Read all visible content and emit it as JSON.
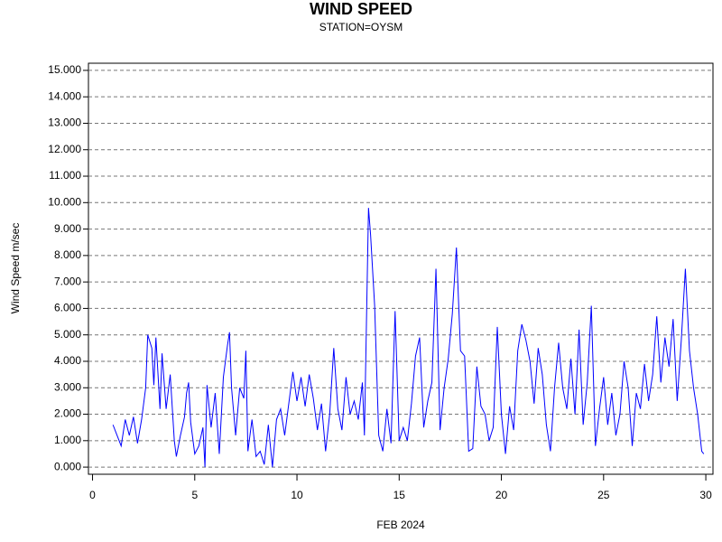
{
  "chart_data": {
    "type": "line",
    "title": "WIND SPEED",
    "subtitle": "STATION=OYSM",
    "x_label": "FEB 2024",
    "y_label": "Wind Speed m/sec",
    "color": "#0000ff",
    "grid": true,
    "xlim": [
      -0.2,
      30.35
    ],
    "ylim": [
      -0.27,
      15.27
    ],
    "xticks": [
      0,
      5,
      10,
      15,
      20,
      25,
      30
    ],
    "yticks": [
      {
        "value": 0,
        "label": "0.000"
      },
      {
        "value": 1,
        "label": "1.000"
      },
      {
        "value": 2,
        "label": "2.000"
      },
      {
        "value": 3,
        "label": "3.000"
      },
      {
        "value": 4,
        "label": "4.000"
      },
      {
        "value": 5,
        "label": "5.000"
      },
      {
        "value": 6,
        "label": "6.000"
      },
      {
        "value": 7,
        "label": "7.000"
      },
      {
        "value": 8,
        "label": "8.000"
      },
      {
        "value": 9,
        "label": "9.000"
      },
      {
        "value": 10,
        "label": "10.000"
      },
      {
        "value": 11,
        "label": "11.000"
      },
      {
        "value": 12,
        "label": "12.000"
      },
      {
        "value": 13,
        "label": "13.000"
      },
      {
        "value": 14,
        "label": "14.000"
      },
      {
        "value": 15,
        "label": "15.000"
      }
    ],
    "x": [
      1.0,
      1.2,
      1.4,
      1.6,
      1.8,
      2.0,
      2.2,
      2.4,
      2.6,
      2.7,
      2.9,
      3.0,
      3.1,
      3.3,
      3.4,
      3.6,
      3.8,
      4.0,
      4.1,
      4.3,
      4.5,
      4.6,
      4.7,
      4.8,
      5.0,
      5.2,
      5.4,
      5.5,
      5.6,
      5.8,
      6.0,
      6.2,
      6.4,
      6.6,
      6.7,
      6.8,
      7.0,
      7.2,
      7.4,
      7.5,
      7.6,
      7.8,
      8.0,
      8.2,
      8.4,
      8.6,
      8.8,
      9.0,
      9.2,
      9.4,
      9.6,
      9.8,
      10.0,
      10.2,
      10.4,
      10.6,
      10.8,
      11.0,
      11.2,
      11.4,
      11.6,
      11.8,
      12.0,
      12.2,
      12.4,
      12.6,
      12.8,
      13.0,
      13.2,
      13.3,
      13.5,
      13.6,
      13.8,
      14.0,
      14.2,
      14.4,
      14.6,
      14.8,
      15.0,
      15.2,
      15.4,
      15.6,
      15.8,
      16.0,
      16.2,
      16.4,
      16.6,
      16.8,
      17.0,
      17.2,
      17.4,
      17.6,
      17.8,
      18.0,
      18.2,
      18.4,
      18.6,
      18.8,
      19.0,
      19.2,
      19.4,
      19.6,
      19.8,
      20.0,
      20.2,
      20.4,
      20.6,
      20.8,
      21.0,
      21.2,
      21.4,
      21.6,
      21.8,
      22.0,
      22.2,
      22.4,
      22.6,
      22.8,
      23.0,
      23.2,
      23.4,
      23.6,
      23.8,
      24.0,
      24.2,
      24.4,
      24.6,
      24.8,
      25.0,
      25.2,
      25.4,
      25.6,
      25.8,
      26.0,
      26.2,
      26.4,
      26.6,
      26.8,
      27.0,
      27.2,
      27.4,
      27.6,
      27.8,
      28.0,
      28.2,
      28.4,
      28.6,
      28.8,
      29.0,
      29.2,
      29.4,
      29.6,
      29.8,
      29.9
    ],
    "values": [
      1.6,
      1.2,
      0.8,
      1.8,
      1.2,
      1.9,
      0.9,
      1.8,
      3.0,
      5.0,
      4.5,
      3.1,
      4.9,
      2.2,
      4.3,
      2.2,
      3.5,
      1.0,
      0.4,
      1.2,
      1.9,
      2.8,
      3.2,
      1.7,
      0.5,
      0.8,
      1.5,
      0.0,
      3.1,
      1.5,
      2.8,
      0.5,
      3.4,
      4.6,
      5.1,
      3.0,
      1.2,
      3.0,
      2.6,
      4.4,
      0.6,
      1.8,
      0.4,
      0.6,
      0.1,
      1.6,
      0.0,
      1.8,
      2.2,
      1.2,
      2.4,
      3.6,
      2.5,
      3.4,
      2.3,
      3.5,
      2.6,
      1.4,
      2.4,
      0.6,
      2.0,
      4.5,
      2.2,
      1.4,
      3.4,
      2.0,
      2.5,
      1.8,
      3.2,
      1.2,
      9.8,
      8.8,
      6.1,
      1.2,
      0.6,
      2.2,
      0.9,
      5.9,
      1.0,
      1.5,
      1.0,
      2.4,
      4.2,
      4.9,
      1.5,
      2.5,
      3.2,
      7.5,
      1.4,
      3.0,
      4.1,
      5.8,
      8.3,
      4.4,
      4.2,
      0.6,
      0.7,
      3.8,
      2.3,
      2.0,
      1.0,
      1.5,
      5.3,
      2.0,
      0.5,
      2.3,
      1.4,
      4.4,
      5.4,
      4.8,
      4.0,
      2.4,
      4.5,
      3.5,
      1.6,
      0.6,
      3.0,
      4.7,
      3.0,
      2.2,
      4.1,
      2.0,
      5.2,
      1.6,
      3.2,
      6.1,
      0.8,
      2.2,
      3.4,
      1.6,
      2.8,
      1.2,
      2.0,
      4.0,
      3.0,
      0.8,
      2.8,
      2.2,
      3.9,
      2.5,
      3.5,
      5.7,
      3.2,
      4.9,
      3.8,
      5.6,
      2.5,
      4.8,
      7.5,
      4.4,
      3.0,
      2.0,
      0.6,
      0.5
    ]
  }
}
